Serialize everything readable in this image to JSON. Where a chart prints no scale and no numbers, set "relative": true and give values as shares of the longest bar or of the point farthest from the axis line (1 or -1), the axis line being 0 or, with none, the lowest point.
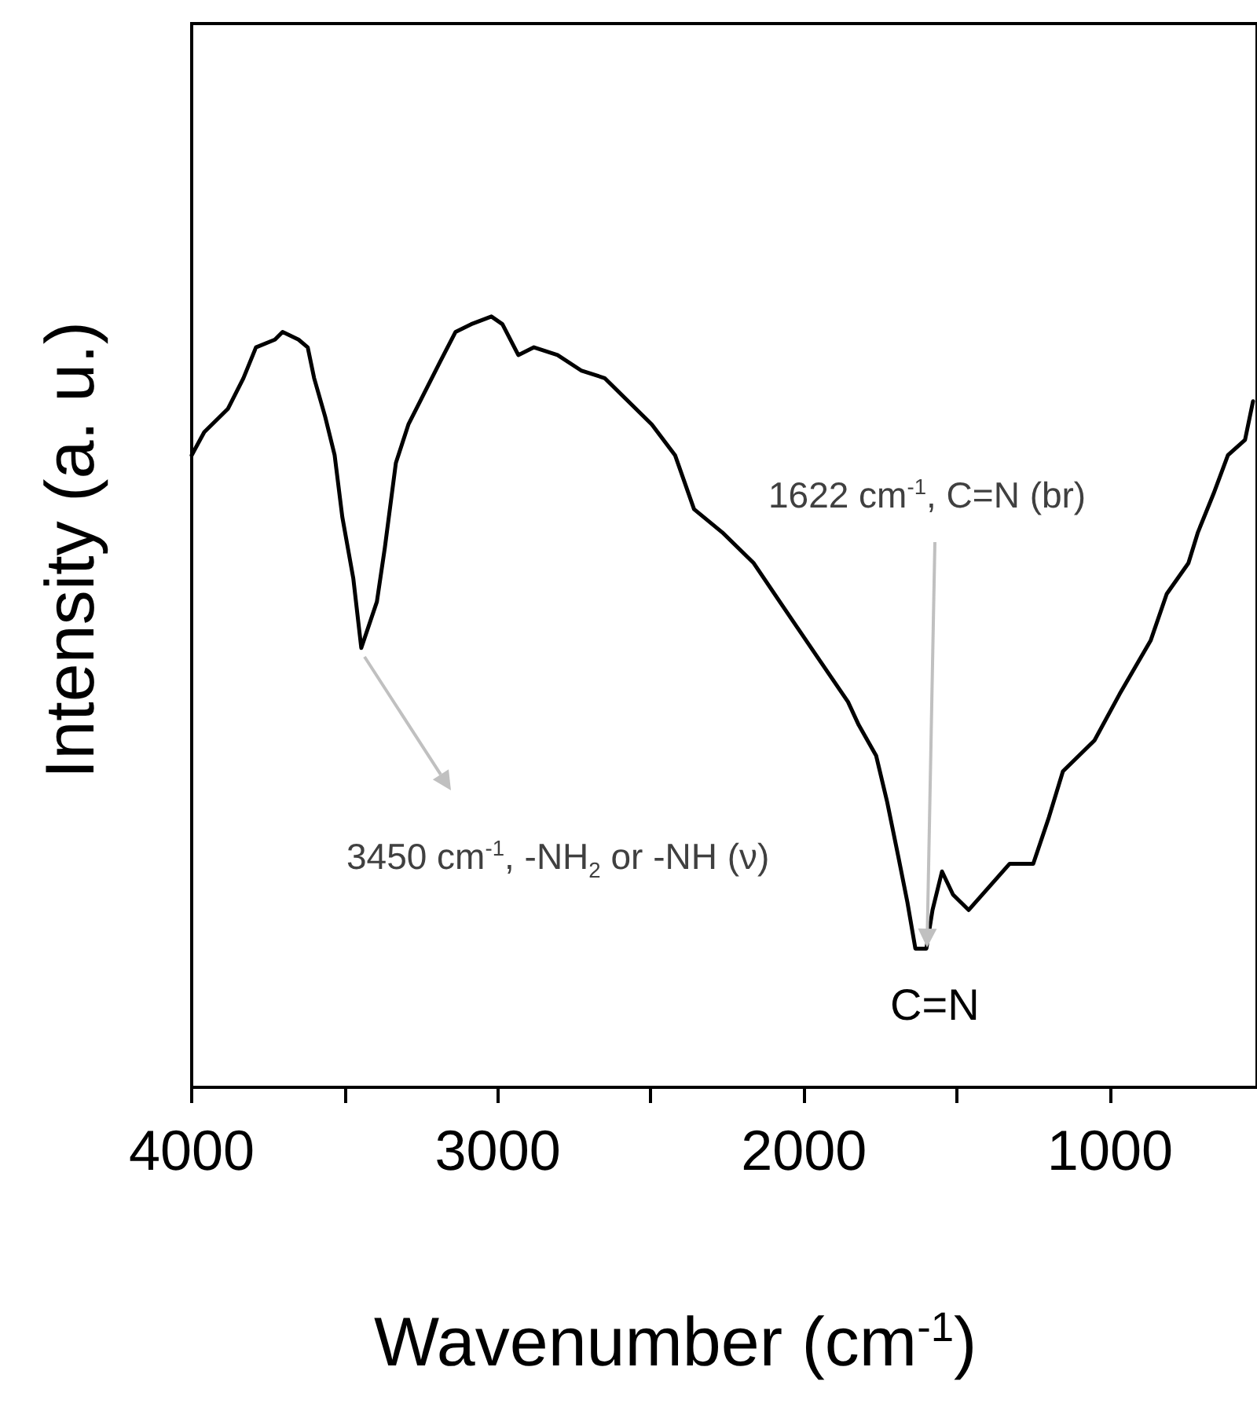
{
  "chart_data": {
    "type": "line",
    "xlabel": "Wavenumber (cm$^{-1}$)",
    "ylabel": "Intensity (a. u.)",
    "relative": true,
    "color": "#000000",
    "xlim": [
      4000,
      520
    ],
    "xticks": [
      4000,
      {
        "value": 3500,
        "label": null
      },
      3000,
      {
        "value": 2500,
        "label": null
      },
      2000,
      {
        "value": 1500,
        "label": null
      },
      1000
    ],
    "x": [
      4000,
      3959,
      3882,
      3831,
      3790,
      3728,
      3703,
      3651,
      3621,
      3600,
      3564,
      3533,
      3508,
      3472,
      3446,
      3395,
      3369,
      3333,
      3292,
      3241,
      3190,
      3138,
      3087,
      3021,
      2985,
      2933,
      2882,
      2805,
      2728,
      2651,
      2574,
      2497,
      2421,
      2359,
      2267,
      2164,
      2062,
      1959,
      1856,
      1821,
      1764,
      1728,
      1692,
      1662,
      1636,
      1600,
      1580,
      1549,
      1513,
      1462,
      1395,
      1328,
      1251,
      1200,
      1154,
      1051,
      969,
      867,
      815,
      744,
      713,
      662,
      615,
      559,
      533
    ],
    "values": [
      0.82,
      0.85,
      0.88,
      0.92,
      0.96,
      0.97,
      0.98,
      0.97,
      0.96,
      0.92,
      0.87,
      0.82,
      0.74,
      0.66,
      0.57,
      0.63,
      0.7,
      0.81,
      0.86,
      0.9,
      0.94,
      0.98,
      0.99,
      1.0,
      0.99,
      0.95,
      0.96,
      0.95,
      0.93,
      0.92,
      0.89,
      0.86,
      0.82,
      0.75,
      0.72,
      0.68,
      0.62,
      0.56,
      0.5,
      0.47,
      0.43,
      0.37,
      0.3,
      0.24,
      0.18,
      0.18,
      0.23,
      0.28,
      0.25,
      0.23,
      0.26,
      0.29,
      0.29,
      0.35,
      0.41,
      0.45,
      0.51,
      0.58,
      0.64,
      0.68,
      0.72,
      0.77,
      0.82,
      0.84,
      0.89
    ],
    "annotations": [
      "3450 cm$^{-1}$, -NH$_{2}$ or -NH (ν)",
      "1622 cm$^{-1}$, C=N (br)",
      "C=N"
    ]
  }
}
